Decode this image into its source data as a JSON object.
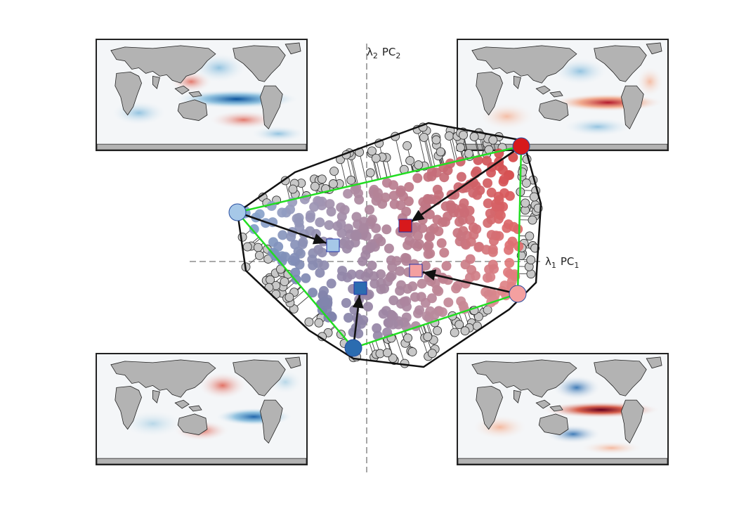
{
  "axes": {
    "x_label": "λ1 PC1",
    "x_label_main": "λ",
    "x_label_sub": "1",
    "x_label_pc": "PC",
    "x_label_pc_sub": "1",
    "y_label": "λ2 PC2",
    "y_label_main": "λ",
    "y_label_sub": "2",
    "y_label_pc": "PC",
    "y_label_pc_sub": "2"
  },
  "colors": {
    "hull": "#111111",
    "triangle": "#22dd22",
    "arrow": "#111111",
    "outer_point": "#c8c8c8",
    "land": "#b0b0b0",
    "warm": "#c0392b",
    "cool": "#2166ac"
  },
  "archetypes": [
    {
      "name": "top-right-vertex",
      "color": "#d7191c"
    },
    {
      "name": "left-vertex",
      "color": "#a6c8e8"
    },
    {
      "name": "bottom-vertex",
      "color": "#2b6cb0"
    },
    {
      "name": "right-vertex",
      "color": "#f4a0a0"
    }
  ],
  "maps": [
    {
      "position": "top-left",
      "pattern": "cool-equatorial"
    },
    {
      "position": "top-right",
      "pattern": "warm-equatorial"
    },
    {
      "position": "bottom-left",
      "pattern": "cool-east"
    },
    {
      "position": "bottom-right",
      "pattern": "strong-warm-equatorial"
    }
  ]
}
